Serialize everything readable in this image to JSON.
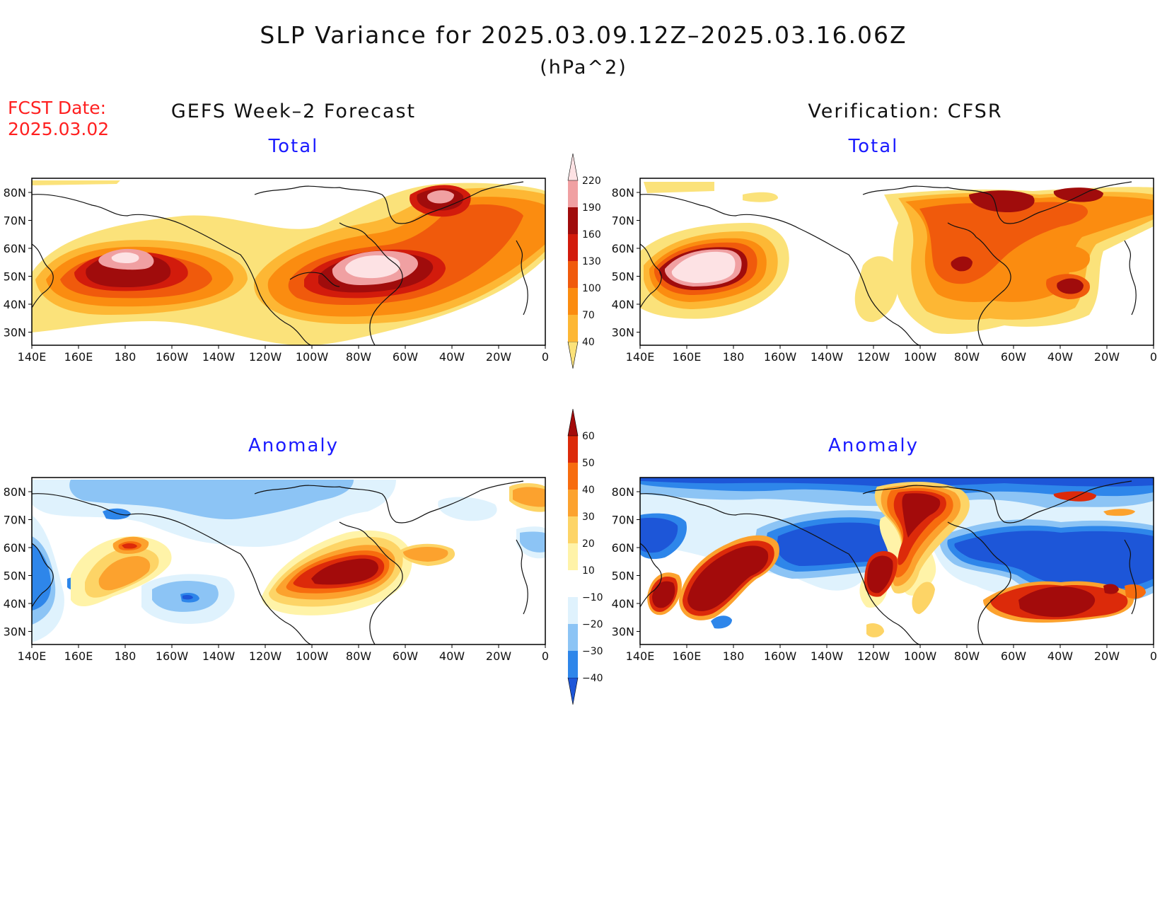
{
  "header": {
    "title": "SLP Variance for 2025.03.09.12Z–2025.03.16.06Z",
    "units": "(hPa^2)",
    "fcst_label": "FCST Date:",
    "fcst_date": "2025.03.02"
  },
  "columns": {
    "left": "GEFS Week–2 Forecast",
    "right": "Verification: CFSR"
  },
  "rows": {
    "top": "Total",
    "bottom": "Anomaly"
  },
  "axes": {
    "lat_labels": [
      "80N",
      "70N",
      "60N",
      "50N",
      "40N",
      "30N"
    ],
    "lon_labels": [
      "140E",
      "160E",
      "180",
      "160W",
      "140W",
      "120W",
      "100W",
      "80W",
      "60W",
      "40W",
      "20W",
      "0"
    ]
  },
  "colorbars": {
    "total": {
      "levels": [
        "40",
        "70",
        "100",
        "130",
        "160",
        "190",
        "220"
      ],
      "colors": [
        "#fbe27a",
        "#fdb734",
        "#fb8c10",
        "#f05a0c",
        "#d21b0c",
        "#a00c0c",
        "#f0a0a2",
        "#fde2e4"
      ]
    },
    "anomaly": {
      "levels": [
        "−40",
        "−30",
        "−20",
        "−10",
        "10",
        "20",
        "30",
        "40",
        "50",
        "60"
      ],
      "colors": [
        "#1d56d8",
        "#2e86ea",
        "#8cc4f5",
        "#dff2fd",
        "#ffffff",
        "#fff3a8",
        "#fdd466",
        "#fca22e",
        "#f76c0e",
        "#dc2a0a",
        "#a30b0b"
      ]
    }
  }
}
